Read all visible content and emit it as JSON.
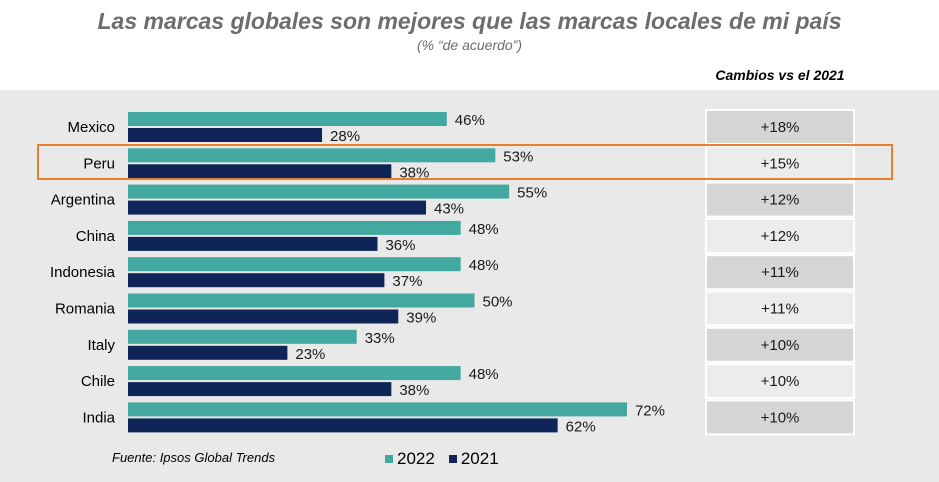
{
  "title": "Las marcas globales son mejores que las marcas locales de mi país",
  "subtitle": "(% “de acuerdo”)",
  "changes_header": "Cambios vs el 2021",
  "source": "Fuente: Ipsos Global Trends",
  "colors": {
    "s2022": "#43a8a0",
    "s2021": "#0f2557",
    "panel": "#e9e9e9",
    "highlight": "#ea7e2f",
    "box_dark": "#d5d5d5",
    "box_light": "#ececec"
  },
  "chart_data": {
    "type": "bar",
    "orientation": "horizontal",
    "categories": [
      "Mexico",
      "Peru",
      "Argentina",
      "China",
      "Indonesia",
      "Romania",
      "Italy",
      "Chile",
      "India"
    ],
    "series": [
      {
        "name": "2022",
        "values": [
          46,
          53,
          55,
          48,
          48,
          50,
          33,
          48,
          72
        ],
        "labels": [
          "46%",
          "53%",
          "55%",
          "48%",
          "48%",
          "50%",
          "33%",
          "48%",
          "72%"
        ]
      },
      {
        "name": "2021",
        "values": [
          28,
          38,
          43,
          36,
          37,
          39,
          23,
          38,
          62
        ],
        "labels": [
          "28%",
          "38%",
          "43%",
          "36%",
          "37%",
          "39%",
          "23%",
          "38%",
          "62%"
        ]
      }
    ],
    "changes": [
      "+18%",
      "+15%",
      "+12%",
      "+12%",
      "+11%",
      "+11%",
      "+10%",
      "+10%",
      "+10%"
    ],
    "highlighted_category": "Peru",
    "legend_position": "bottom"
  }
}
